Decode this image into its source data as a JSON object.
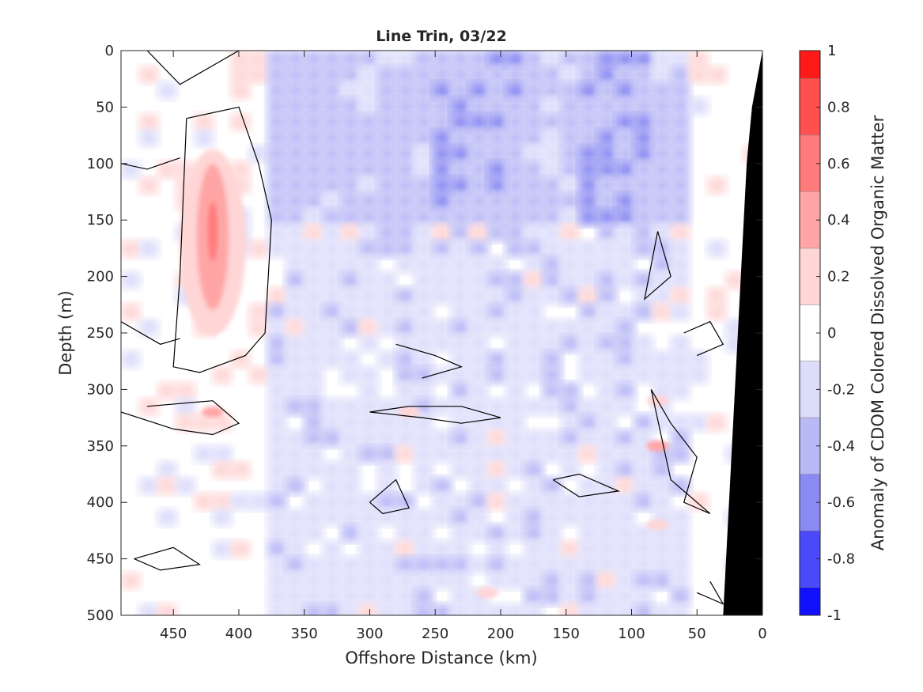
{
  "chart_data": {
    "type": "heatmap",
    "title": "Line Trin, 03/22",
    "xlabel": "Offshore Distance (km)",
    "ylabel": "Depth (m)",
    "colorbar_label": "Anomaly of CDOM Colored Dissolved Organic Matter",
    "xlim": [
      490,
      0
    ],
    "ylim": [
      0,
      500
    ],
    "clim": [
      -1,
      1
    ],
    "x_ticks": [
      450,
      400,
      350,
      300,
      250,
      200,
      150,
      100,
      50,
      0
    ],
    "y_ticks": [
      0,
      50,
      100,
      150,
      200,
      250,
      300,
      350,
      400,
      450,
      500
    ],
    "colorbar_ticks": [
      1,
      0.8,
      0.6,
      0.4,
      0.2,
      0,
      -0.2,
      -0.4,
      -0.6,
      -0.8,
      -1
    ],
    "colorbar_levels": [
      0.9,
      0.7,
      0.5,
      0.3,
      0.1,
      -0.1,
      -0.3,
      -0.5,
      -0.7,
      -0.9
    ],
    "colorbar_level_colors": [
      "#ff1a1a",
      "#ff4f4f",
      "#ff7a7a",
      "#ffa5a5",
      "#ffd5d5",
      "#ffffff",
      "#dcdcfb",
      "#b9b9f6",
      "#8a8af2",
      "#4a4afa",
      "#1010ff"
    ],
    "features": {
      "positive_anomaly_core": {
        "x_range": [
          440,
          395
        ],
        "depth_range": [
          60,
          285
        ],
        "peak_value": 0.6,
        "peak_x": 420,
        "peak_depth": 160
      },
      "negative_anomaly_upper": {
        "x_range": [
          380,
          60
        ],
        "depth_range": [
          0,
          150
        ],
        "typical_value": -0.3,
        "min_value": -0.45
      },
      "bathymetry_color": "#000000",
      "bathymetry_surface": [
        [
          0,
          0
        ],
        [
          8,
          50
        ],
        [
          12,
          100
        ],
        [
          30,
          500
        ]
      ]
    },
    "grid": false
  },
  "colors": {
    "positive": "#ff0000",
    "negative": "#0000ff",
    "zero": "#ffffff",
    "contour": "#000000",
    "bathymetry": "#000000"
  }
}
